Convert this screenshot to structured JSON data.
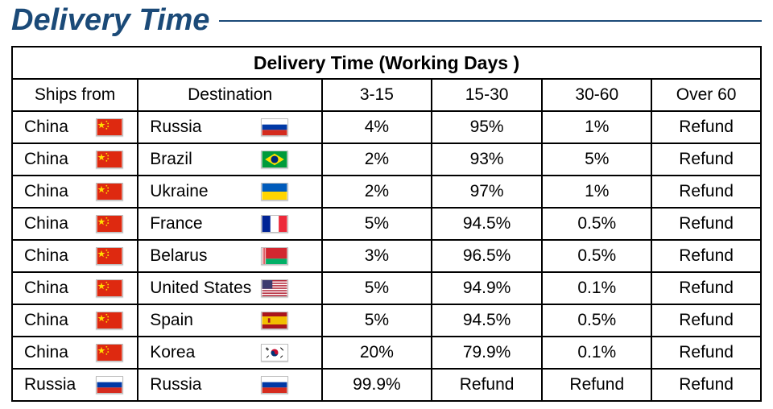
{
  "page": {
    "title": "Delivery Time",
    "accent_color": "#1b4a78",
    "background_color": "#ffffff",
    "border_color": "#000000"
  },
  "table": {
    "caption": "Delivery Time (Working Days )",
    "columns": {
      "ships_from": "Ships from",
      "destination": "Destination",
      "range_a": "3-15",
      "range_b": "15-30",
      "range_c": "30-60",
      "range_d": "Over 60"
    },
    "rows": [
      {
        "from": "China",
        "from_flag": "china",
        "to": "Russia",
        "to_flag": "russia",
        "a": "4%",
        "b": "95%",
        "c": "1%",
        "d": "Refund"
      },
      {
        "from": "China",
        "from_flag": "china",
        "to": "Brazil",
        "to_flag": "brazil",
        "a": "2%",
        "b": "93%",
        "c": "5%",
        "d": "Refund"
      },
      {
        "from": "China",
        "from_flag": "china",
        "to": "Ukraine",
        "to_flag": "ukraine",
        "a": "2%",
        "b": "97%",
        "c": "1%",
        "d": "Refund"
      },
      {
        "from": "China",
        "from_flag": "china",
        "to": "France",
        "to_flag": "france",
        "a": "5%",
        "b": "94.5%",
        "c": "0.5%",
        "d": "Refund"
      },
      {
        "from": "China",
        "from_flag": "china",
        "to": "Belarus",
        "to_flag": "belarus",
        "a": "3%",
        "b": "96.5%",
        "c": "0.5%",
        "d": "Refund"
      },
      {
        "from": "China",
        "from_flag": "china",
        "to": "United States",
        "to_flag": "usa",
        "a": "5%",
        "b": "94.9%",
        "c": "0.1%",
        "d": "Refund"
      },
      {
        "from": "China",
        "from_flag": "china",
        "to": "Spain",
        "to_flag": "spain",
        "a": "5%",
        "b": "94.5%",
        "c": "0.5%",
        "d": "Refund"
      },
      {
        "from": "China",
        "from_flag": "china",
        "to": "Korea",
        "to_flag": "korea",
        "a": "20%",
        "b": "79.9%",
        "c": "0.1%",
        "d": "Refund"
      },
      {
        "from": "Russia",
        "from_flag": "russia",
        "to": "Russia",
        "to_flag": "russia",
        "a": "99.9%",
        "b": "Refund",
        "c": "Refund",
        "d": "Refund"
      }
    ]
  },
  "flags": {
    "china": {
      "colors": [
        "#de2910",
        "#ffde00"
      ]
    },
    "russia": {
      "colors": [
        "#ffffff",
        "#0039a6",
        "#d52b1e"
      ]
    },
    "brazil": {
      "colors": [
        "#009b3a",
        "#fedf00",
        "#002776"
      ]
    },
    "ukraine": {
      "colors": [
        "#005bbb",
        "#ffd500"
      ]
    },
    "france": {
      "colors": [
        "#002395",
        "#ffffff",
        "#ed2939"
      ]
    },
    "belarus": {
      "colors": [
        "#d22730",
        "#00af66",
        "#ffffff"
      ]
    },
    "usa": {
      "colors": [
        "#b22234",
        "#ffffff",
        "#3c3b6e"
      ]
    },
    "spain": {
      "colors": [
        "#aa151b",
        "#f1bf00"
      ]
    },
    "korea": {
      "colors": [
        "#ffffff",
        "#c60c30",
        "#003478",
        "#000000"
      ]
    }
  }
}
